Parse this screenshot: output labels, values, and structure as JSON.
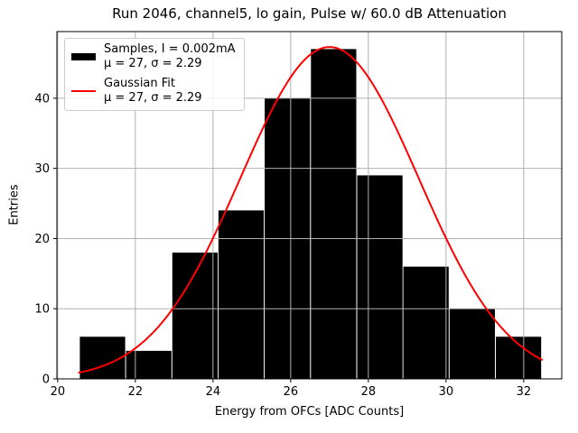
{
  "chart_data": {
    "type": "bar",
    "subtype": "histogram-with-gaussian-fit",
    "title": "Run 2046, channel5, lo gain, Pulse w/ 60.0 dB Attenuation",
    "xlabel": "Energy from OFCs [ADC Counts]",
    "ylabel": "Entries",
    "xlim": [
      19.98,
      32.98
    ],
    "ylim": [
      0,
      49.5
    ],
    "xticks": [
      20,
      22,
      24,
      26,
      28,
      30,
      32
    ],
    "yticks": [
      0,
      10,
      20,
      30,
      40
    ],
    "grid": true,
    "histogram": {
      "bin_edges": [
        20.56,
        21.75,
        22.94,
        24.13,
        25.32,
        26.51,
        27.7,
        28.89,
        30.08,
        31.27,
        32.46
      ],
      "counts": [
        6,
        4,
        18,
        24,
        40,
        47,
        29,
        16,
        10,
        6
      ],
      "total_entries": 200
    },
    "gaussian_fit": {
      "mu": 27,
      "sigma": 2.29,
      "amplitude": 47.3,
      "x_start": 20.55,
      "x_end": 32.47
    },
    "legend": {
      "position": "upper-left",
      "entries": [
        {
          "swatch": "black-patch",
          "label": "Samples, I = 0.002mA",
          "stats": "μ = 27, σ = 2.29"
        },
        {
          "swatch": "red-line",
          "label": "Gaussian Fit",
          "stats": "μ = 27, σ = 2.29"
        }
      ]
    },
    "colors": {
      "bar": "#000000",
      "fit_line": "#ff0000",
      "grid": "#b0b0b0",
      "spine": "#000000",
      "background": "#ffffff"
    }
  }
}
